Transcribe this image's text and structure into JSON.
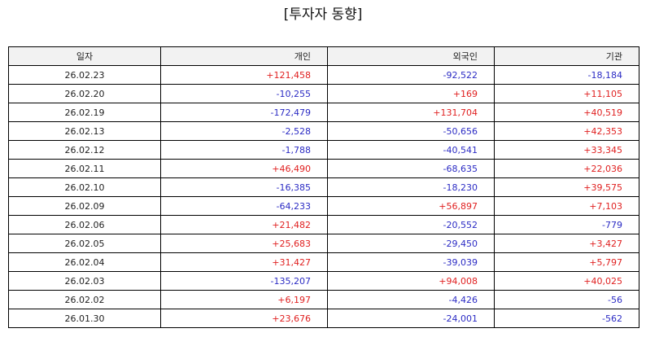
{
  "title": "[투자자 동향]",
  "colors": {
    "positive": "#e02020",
    "negative": "#2b2bc4",
    "header_bg": "#f2f2f2"
  },
  "columns": [
    "일자",
    "개인",
    "외국인",
    "기관"
  ],
  "rows": [
    {
      "date": "26.02.23",
      "individual": "+121,458",
      "foreign": "-92,522",
      "institution": "-18,184"
    },
    {
      "date": "26.02.20",
      "individual": "-10,255",
      "foreign": "+169",
      "institution": "+11,105"
    },
    {
      "date": "26.02.19",
      "individual": "-172,479",
      "foreign": "+131,704",
      "institution": "+40,519"
    },
    {
      "date": "26.02.13",
      "individual": "-2,528",
      "foreign": "-50,656",
      "institution": "+42,353"
    },
    {
      "date": "26.02.12",
      "individual": "-1,788",
      "foreign": "-40,541",
      "institution": "+33,345"
    },
    {
      "date": "26.02.11",
      "individual": "+46,490",
      "foreign": "-68,635",
      "institution": "+22,036"
    },
    {
      "date": "26.02.10",
      "individual": "-16,385",
      "foreign": "-18,230",
      "institution": "+39,575"
    },
    {
      "date": "26.02.09",
      "individual": "-64,233",
      "foreign": "+56,897",
      "institution": "+7,103"
    },
    {
      "date": "26.02.06",
      "individual": "+21,482",
      "foreign": "-20,552",
      "institution": "-779"
    },
    {
      "date": "26.02.05",
      "individual": "+25,683",
      "foreign": "-29,450",
      "institution": "+3,427"
    },
    {
      "date": "26.02.04",
      "individual": "+31,427",
      "foreign": "-39,039",
      "institution": "+5,797"
    },
    {
      "date": "26.02.03",
      "individual": "-135,207",
      "foreign": "+94,008",
      "institution": "+40,025"
    },
    {
      "date": "26.02.02",
      "individual": "+6,197",
      "foreign": "-4,426",
      "institution": "-56"
    },
    {
      "date": "26.01.30",
      "individual": "+23,676",
      "foreign": "-24,001",
      "institution": "-562"
    }
  ]
}
